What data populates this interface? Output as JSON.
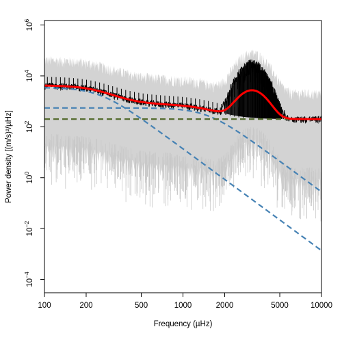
{
  "chart_data": {
    "type": "line",
    "title": "",
    "xlabel": "Frequency (µHz)",
    "ylabel": "Power density [(m/s)²/µHz]",
    "x_scale": "log",
    "y_scale": "log",
    "xlim": [
      100,
      10000
    ],
    "ylim": [
      3e-05,
      1500000
    ],
    "x_ticks": [
      {
        "value": 100,
        "label": "100"
      },
      {
        "value": 200,
        "label": "200"
      },
      {
        "value": 500,
        "label": "500"
      },
      {
        "value": 1000,
        "label": "1000"
      },
      {
        "value": 2000,
        "label": "2000"
      },
      {
        "value": 5000,
        "label": "5000"
      },
      {
        "value": 10000,
        "label": "10000"
      }
    ],
    "y_ticks": [
      {
        "value": 0.0001,
        "base": "10",
        "exp": "−4"
      },
      {
        "value": 0.01,
        "base": "10",
        "exp": "−2"
      },
      {
        "value": 1,
        "base": "10",
        "exp": "0"
      },
      {
        "value": 100,
        "base": "10",
        "exp": "2"
      },
      {
        "value": 10000,
        "base": "10",
        "exp": "4"
      },
      {
        "value": 1000000,
        "base": "10",
        "exp": "6"
      }
    ],
    "grid": false,
    "legend": "none",
    "model": {
      "white_noise_level": 200,
      "granulation_components": [
        {
          "amplitude": 3500,
          "characteristic_frequency": 250,
          "exponent": 4
        },
        {
          "amplitude": 550,
          "characteristic_frequency": 1500,
          "exponent": 4
        }
      ],
      "oscillation_hump": {
        "center": 3150,
        "width_dex": 0.08,
        "height": 2500
      },
      "spectrum_hump": {
        "center": 3150,
        "width_dex": 0.07,
        "height": 40000
      }
    },
    "series": [
      {
        "id": "raw-spectrum",
        "style": "filled band",
        "color": "#d3d3d3",
        "band_low_factor": 0.004,
        "band_high_factor": 10
      },
      {
        "id": "smoothed-spectrum",
        "style": "line",
        "color": "#000000"
      },
      {
        "id": "background-fit",
        "style": "thick line",
        "color": "#ff0000"
      },
      {
        "id": "granulation-1",
        "style": "dashed",
        "color": "#4682b4"
      },
      {
        "id": "granulation-2",
        "style": "dashed",
        "color": "#4682b4"
      },
      {
        "id": "white-noise",
        "style": "dashed",
        "color": "#556b2f"
      }
    ]
  }
}
